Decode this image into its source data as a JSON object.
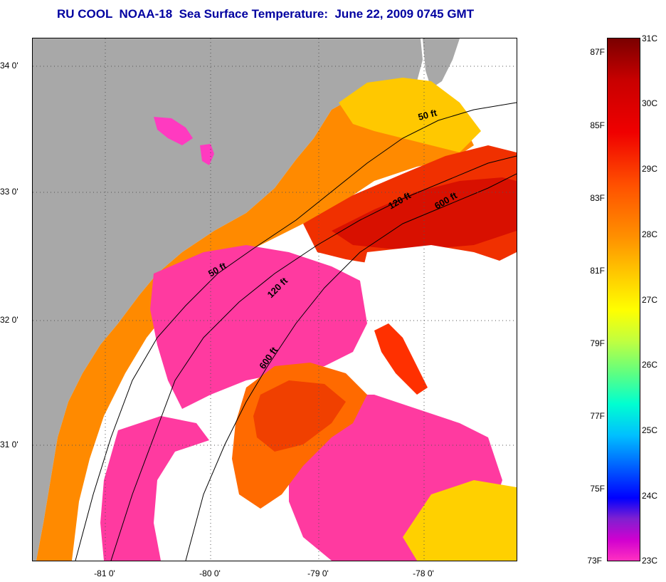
{
  "title": "RU COOL  NOAA-18  Sea Surface Temperature:  June 22, 2009 0745 GMT",
  "map": {
    "latitude_labels": [
      "34 0'",
      "33 0'",
      "32 0'",
      "31 0'"
    ],
    "longitude_labels": [
      "-81 0'",
      "-80 0'",
      "-79 0'",
      "-78 0'"
    ],
    "contour_labels": [
      {
        "id": "50ft-north",
        "text": "50 ft"
      },
      {
        "id": "120ft-north",
        "text": "120 ft"
      },
      {
        "id": "600ft-north",
        "text": "600 ft"
      },
      {
        "id": "50ft-south",
        "text": "50 ft"
      },
      {
        "id": "120ft-south",
        "text": "120 ft"
      },
      {
        "id": "600ft-south",
        "text": "600 ft"
      }
    ],
    "colors": {
      "land": "#a8a8a8",
      "cloud": "#ffffff",
      "cold_water": "#ff30a0",
      "warm_water": "#ff5a00",
      "hot_water": "#e01000",
      "mid_water": "#ffb000"
    }
  },
  "colorbar": {
    "fahrenheit_labels": [
      "87F",
      "85F",
      "83F",
      "81F",
      "79F",
      "77F",
      "75F",
      "73F"
    ],
    "celsius_labels": [
      "31C",
      "30C",
      "29C",
      "28C",
      "27C",
      "26C",
      "25C",
      "24C",
      "23C"
    ]
  }
}
